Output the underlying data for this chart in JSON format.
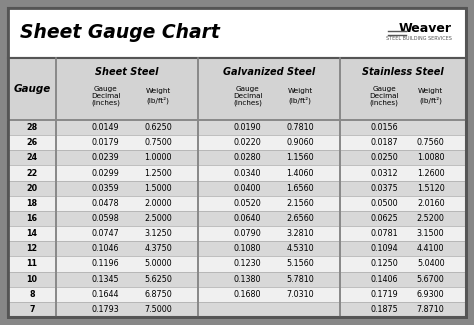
{
  "title": "Sheet Gauge Chart",
  "bg_outer": "#878787",
  "bg_white": "#ffffff",
  "bg_header_row": "#d3d3d3",
  "bg_row_dark": "#d8d8d8",
  "bg_row_light": "#f0f0f0",
  "border_color": "#555555",
  "divider_color": "#888888",
  "gauges": [
    28,
    26,
    24,
    22,
    20,
    18,
    16,
    14,
    12,
    11,
    10,
    8,
    7
  ],
  "sheet_steel_dec": [
    "0.0149",
    "0.0179",
    "0.0239",
    "0.0299",
    "0.0359",
    "0.0478",
    "0.0598",
    "0.0747",
    "0.1046",
    "0.1196",
    "0.1345",
    "0.1644",
    "0.1793"
  ],
  "sheet_steel_wt": [
    "0.6250",
    "0.7500",
    "1.0000",
    "1.2500",
    "1.5000",
    "2.0000",
    "2.5000",
    "3.1250",
    "4.3750",
    "5.0000",
    "5.6250",
    "6.8750",
    "7.5000"
  ],
  "galv_dec": [
    "0.0190",
    "0.0220",
    "0.0280",
    "0.0340",
    "0.0400",
    "0.0520",
    "0.0640",
    "0.0790",
    "0.1080",
    "0.1230",
    "0.1380",
    "0.1680",
    ""
  ],
  "galv_wt": [
    "0.7810",
    "0.9060",
    "1.1560",
    "1.4060",
    "1.6560",
    "2.1560",
    "2.6560",
    "3.2810",
    "4.5310",
    "5.1560",
    "5.7810",
    "7.0310",
    ""
  ],
  "stain_dec": [
    "0.0156",
    "0.0187",
    "0.0250",
    "0.0312",
    "0.0375",
    "0.0500",
    "0.0625",
    "0.0781",
    "0.1094",
    "0.1250",
    "0.1406",
    "0.1719",
    "0.1875"
  ],
  "stain_wt": [
    "",
    "0.7560",
    "1.0080",
    "1.2600",
    "1.5120",
    "2.0160",
    "2.5200",
    "3.1500",
    "4.4100",
    "5.0400",
    "5.6700",
    "6.9300",
    "7.8710"
  ]
}
